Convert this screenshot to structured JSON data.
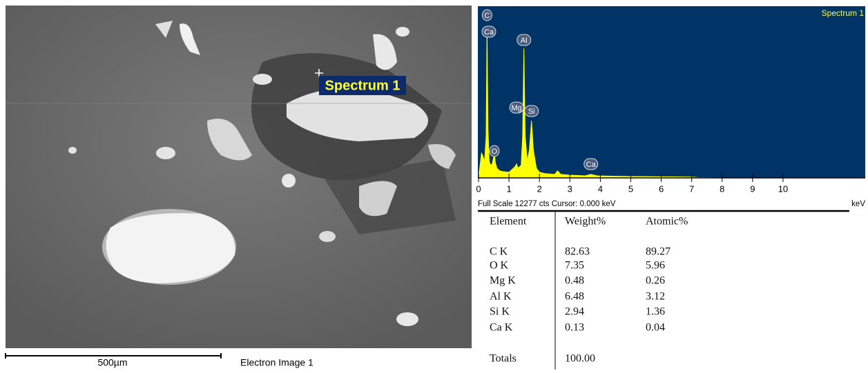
{
  "image": {
    "marker_label": "Spectrum 1",
    "scale_label": "500µm",
    "caption": "Electron Image 1"
  },
  "chart_data": {
    "type": "spectrum",
    "title": "Spectrum 1",
    "color": "#ffff00",
    "background": "#003366",
    "x": [
      0,
      0.1,
      0.2,
      0.25,
      0.28,
      0.31,
      0.35,
      0.4,
      0.45,
      0.5,
      0.52,
      0.55,
      0.6,
      0.7,
      0.8,
      1.0,
      1.2,
      1.25,
      1.3,
      1.4,
      1.45,
      1.49,
      1.53,
      1.6,
      1.67,
      1.74,
      1.8,
      1.9,
      2.0,
      2.2,
      2.5,
      2.6,
      2.7,
      3.0,
      3.5,
      3.69,
      3.9,
      4.5,
      5,
      6,
      7,
      7.2,
      8,
      12.7
    ],
    "values": [
      0,
      1800,
      1200,
      3000,
      10800,
      3500,
      1200,
      900,
      1000,
      1500,
      1800,
      1100,
      700,
      500,
      450,
      400,
      800,
      1000,
      700,
      900,
      3000,
      9300,
      3000,
      1200,
      2000,
      4100,
      2000,
      700,
      400,
      300,
      250,
      500,
      250,
      200,
      150,
      250,
      150,
      120,
      100,
      80,
      60,
      30,
      0,
      0
    ],
    "xlim": [
      0,
      12.7
    ],
    "ylim": [
      0,
      12277
    ],
    "xticks": [
      0,
      1,
      2,
      3,
      4,
      5,
      6,
      7,
      8,
      9,
      10
    ],
    "annotations": [
      {
        "text": "C",
        "x": 0.28
      },
      {
        "text": "Ca",
        "x": 0.34
      },
      {
        "text": "Al",
        "x": 1.49
      },
      {
        "text": "Mg",
        "x": 1.25
      },
      {
        "text": "Si",
        "x": 1.74
      },
      {
        "text": "O",
        "x": 0.52
      },
      {
        "text": "Ca",
        "x": 3.69
      }
    ],
    "footer": "Full Scale 12277 cts  Cursor: 0.000 keV",
    "x_unit": "keV"
  },
  "table": {
    "header": [
      "Element",
      "Weight%",
      "Atomic%"
    ],
    "rows": [
      [
        "C K",
        "82.63",
        "89.27"
      ],
      [
        "O K",
        "7.35",
        "5.96"
      ],
      [
        "Mg K",
        "0.48",
        "0.26"
      ],
      [
        "Al K",
        "6.48",
        "3.12"
      ],
      [
        "Si K",
        "2.94",
        "1.36"
      ],
      [
        "Ca K",
        "0.13",
        "0.04"
      ]
    ],
    "totals": [
      "Totals",
      "100.00"
    ]
  }
}
